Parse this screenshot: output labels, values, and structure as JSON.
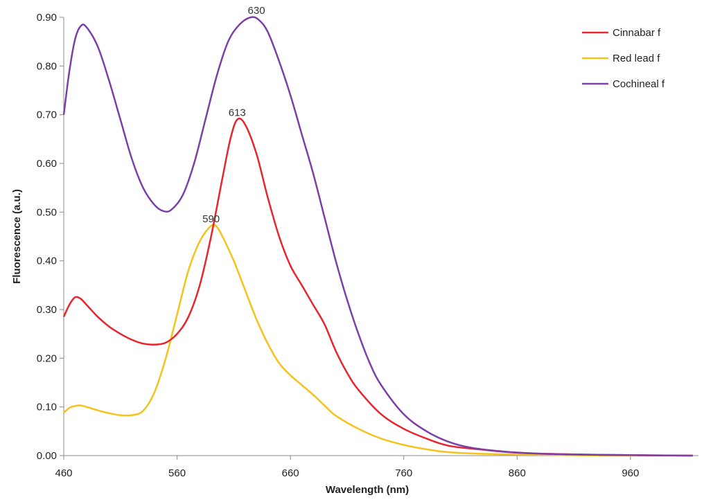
{
  "chart_data": {
    "type": "line",
    "title": "",
    "xlabel": "Wavelength (nm)",
    "ylabel": "Fluorescence (a.u.)",
    "xlim": [
      460,
      1020
    ],
    "ylim": [
      0,
      0.9
    ],
    "x_ticks": [
      460,
      560,
      660,
      760,
      860,
      960
    ],
    "y_ticks": [
      0.0,
      0.1,
      0.2,
      0.3,
      0.4,
      0.5,
      0.6,
      0.7,
      0.8,
      0.9
    ],
    "y_tick_labels": [
      "0.00",
      "0.10",
      "0.20",
      "0.30",
      "0.40",
      "0.50",
      "0.60",
      "0.70",
      "0.80",
      "0.90"
    ],
    "legend_position": "top-right",
    "grid": false,
    "series": [
      {
        "name": "Cinnabar f",
        "color": "#e8242c",
        "points": [
          [
            460,
            0.285
          ],
          [
            465,
            0.31
          ],
          [
            470,
            0.325
          ],
          [
            475,
            0.322
          ],
          [
            480,
            0.31
          ],
          [
            490,
            0.285
          ],
          [
            500,
            0.265
          ],
          [
            510,
            0.25
          ],
          [
            520,
            0.238
          ],
          [
            530,
            0.23
          ],
          [
            540,
            0.228
          ],
          [
            550,
            0.232
          ],
          [
            560,
            0.25
          ],
          [
            570,
            0.285
          ],
          [
            580,
            0.35
          ],
          [
            590,
            0.45
          ],
          [
            600,
            0.57
          ],
          [
            607,
            0.65
          ],
          [
            613,
            0.69
          ],
          [
            620,
            0.68
          ],
          [
            630,
            0.62
          ],
          [
            640,
            0.53
          ],
          [
            650,
            0.45
          ],
          [
            660,
            0.39
          ],
          [
            670,
            0.35
          ],
          [
            680,
            0.31
          ],
          [
            690,
            0.27
          ],
          [
            700,
            0.215
          ],
          [
            710,
            0.17
          ],
          [
            720,
            0.135
          ],
          [
            740,
            0.085
          ],
          [
            760,
            0.055
          ],
          [
            780,
            0.035
          ],
          [
            800,
            0.02
          ],
          [
            830,
            0.012
          ],
          [
            860,
            0.006
          ],
          [
            900,
            0.003
          ],
          [
            960,
            0.001
          ],
          [
            1015,
            0.0
          ]
        ]
      },
      {
        "name": "Red lead f",
        "color": "#f5c21b",
        "points": [
          [
            460,
            0.088
          ],
          [
            465,
            0.098
          ],
          [
            470,
            0.102
          ],
          [
            475,
            0.103
          ],
          [
            480,
            0.1
          ],
          [
            490,
            0.093
          ],
          [
            500,
            0.087
          ],
          [
            510,
            0.083
          ],
          [
            520,
            0.083
          ],
          [
            530,
            0.092
          ],
          [
            540,
            0.13
          ],
          [
            550,
            0.2
          ],
          [
            560,
            0.29
          ],
          [
            570,
            0.38
          ],
          [
            580,
            0.44
          ],
          [
            590,
            0.472
          ],
          [
            595,
            0.47
          ],
          [
            600,
            0.45
          ],
          [
            610,
            0.4
          ],
          [
            620,
            0.34
          ],
          [
            630,
            0.28
          ],
          [
            640,
            0.23
          ],
          [
            650,
            0.19
          ],
          [
            660,
            0.165
          ],
          [
            670,
            0.145
          ],
          [
            680,
            0.125
          ],
          [
            690,
            0.103
          ],
          [
            700,
            0.082
          ],
          [
            720,
            0.055
          ],
          [
            740,
            0.035
          ],
          [
            760,
            0.022
          ],
          [
            780,
            0.013
          ],
          [
            800,
            0.007
          ],
          [
            840,
            0.003
          ],
          [
            900,
            0.001
          ],
          [
            960,
            0.0
          ],
          [
            1015,
            0.0
          ]
        ]
      },
      {
        "name": "Cochineal f",
        "color": "#7b3fa8",
        "points": [
          [
            460,
            0.7
          ],
          [
            465,
            0.79
          ],
          [
            470,
            0.855
          ],
          [
            475,
            0.882
          ],
          [
            480,
            0.88
          ],
          [
            490,
            0.84
          ],
          [
            500,
            0.77
          ],
          [
            510,
            0.69
          ],
          [
            520,
            0.61
          ],
          [
            530,
            0.55
          ],
          [
            540,
            0.515
          ],
          [
            548,
            0.502
          ],
          [
            555,
            0.505
          ],
          [
            565,
            0.535
          ],
          [
            575,
            0.6
          ],
          [
            585,
            0.69
          ],
          [
            595,
            0.78
          ],
          [
            605,
            0.85
          ],
          [
            615,
            0.885
          ],
          [
            625,
            0.9
          ],
          [
            632,
            0.895
          ],
          [
            640,
            0.87
          ],
          [
            650,
            0.81
          ],
          [
            660,
            0.74
          ],
          [
            670,
            0.66
          ],
          [
            680,
            0.58
          ],
          [
            690,
            0.49
          ],
          [
            700,
            0.4
          ],
          [
            710,
            0.32
          ],
          [
            720,
            0.25
          ],
          [
            730,
            0.19
          ],
          [
            740,
            0.145
          ],
          [
            760,
            0.085
          ],
          [
            780,
            0.05
          ],
          [
            800,
            0.028
          ],
          [
            820,
            0.016
          ],
          [
            850,
            0.008
          ],
          [
            880,
            0.004
          ],
          [
            920,
            0.002
          ],
          [
            960,
            0.001
          ],
          [
            1015,
            0.0
          ]
        ]
      }
    ],
    "annotations": [
      {
        "text": "630",
        "x": 630,
        "y": 0.9
      },
      {
        "text": "613",
        "x": 613,
        "y": 0.69
      },
      {
        "text": "590",
        "x": 590,
        "y": 0.472
      }
    ]
  }
}
